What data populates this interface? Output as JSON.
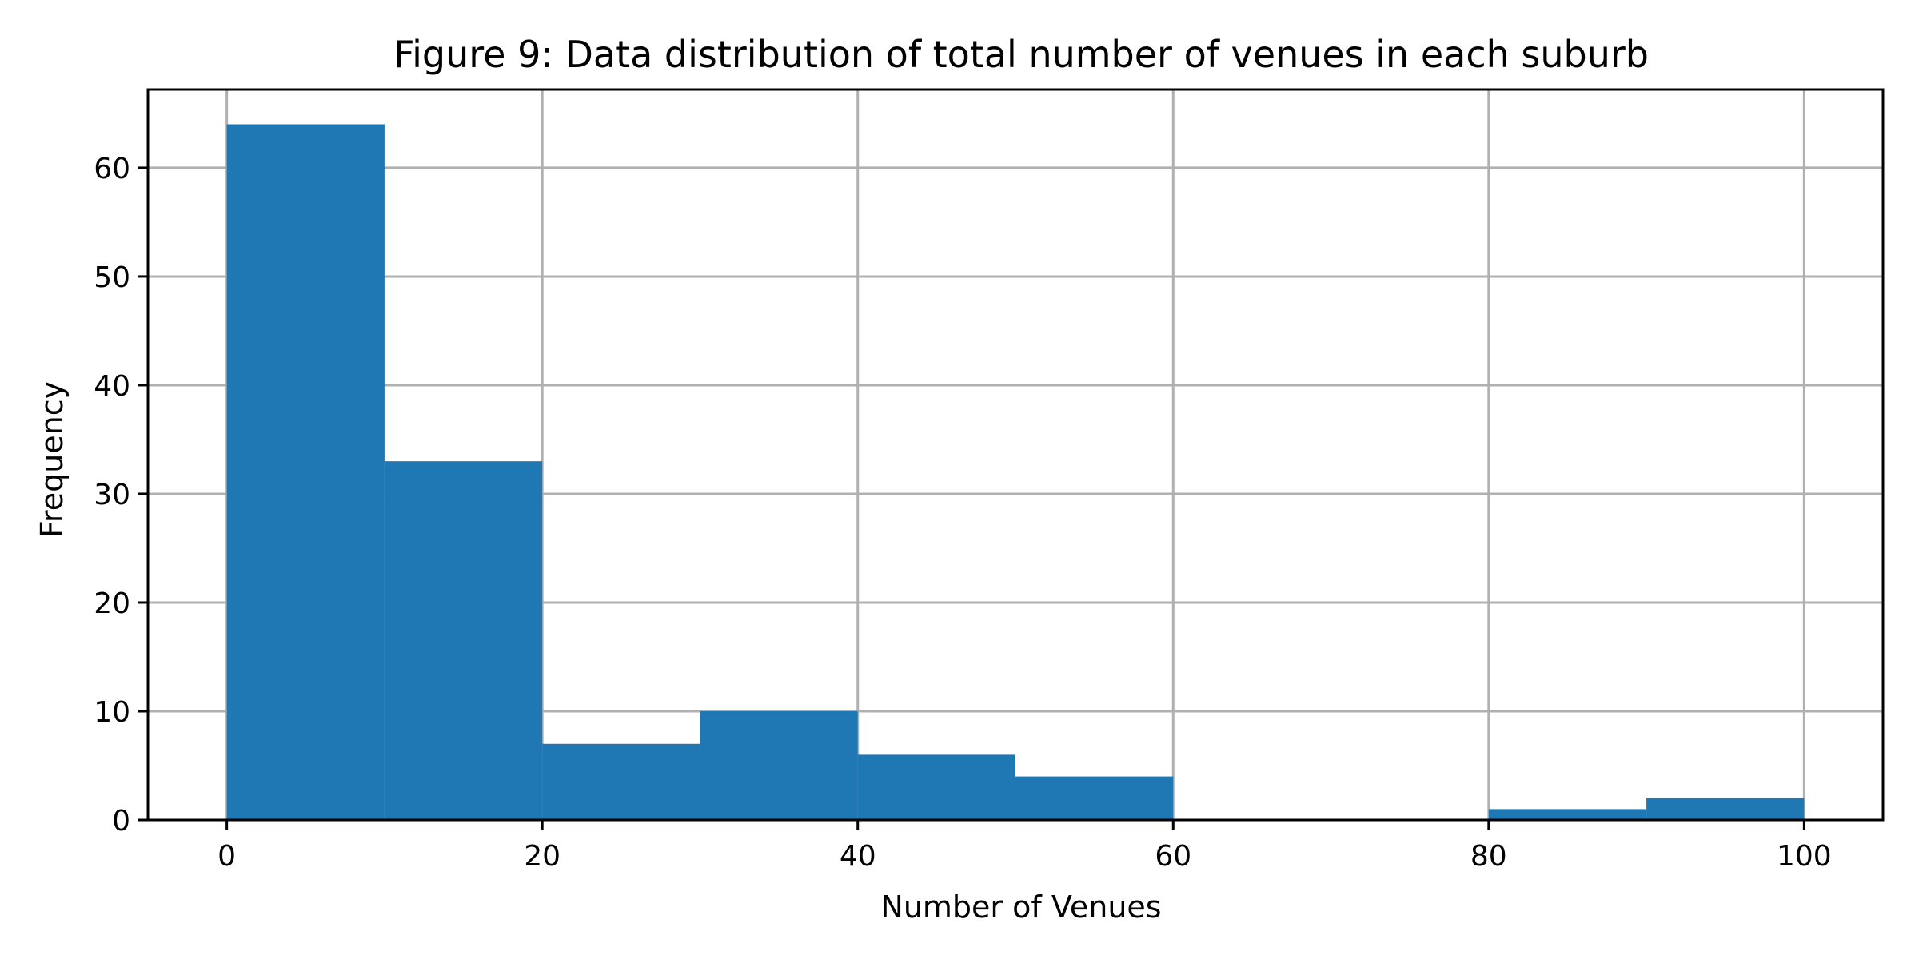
{
  "chart_data": {
    "type": "bar",
    "title": "Figure 9: Data distribution of total number of venues in each suburb",
    "xlabel": "Number of Venues",
    "ylabel": "Frequency",
    "bins": [
      {
        "x0": 0,
        "x1": 10,
        "count": 64
      },
      {
        "x0": 10,
        "x1": 20,
        "count": 33
      },
      {
        "x0": 20,
        "x1": 30,
        "count": 7
      },
      {
        "x0": 30,
        "x1": 40,
        "count": 10
      },
      {
        "x0": 40,
        "x1": 50,
        "count": 6
      },
      {
        "x0": 50,
        "x1": 60,
        "count": 4
      },
      {
        "x0": 60,
        "x1": 70,
        "count": 0
      },
      {
        "x0": 70,
        "x1": 80,
        "count": 0
      },
      {
        "x0": 80,
        "x1": 90,
        "count": 1
      },
      {
        "x0": 90,
        "x1": 100,
        "count": 2
      }
    ],
    "xlim": [
      -5,
      105
    ],
    "ylim": [
      0,
      67.2
    ],
    "xticks": [
      0,
      20,
      40,
      60,
      80,
      100
    ],
    "yticks": [
      0,
      10,
      20,
      30,
      40,
      50,
      60
    ],
    "grid": true,
    "colors": {
      "bar": "#1f77b4",
      "grid": "#b0b0b0",
      "axis": "#000000"
    }
  }
}
